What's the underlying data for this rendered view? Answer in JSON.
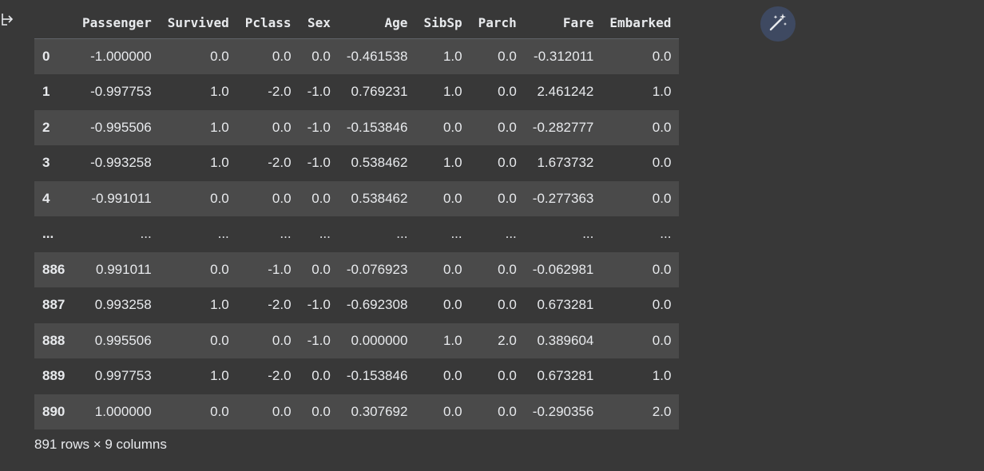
{
  "columns": [
    "Passenger",
    "Survived",
    "Pclass",
    "Sex",
    "Age",
    "SibSp",
    "Parch",
    "Fare",
    "Embarked"
  ],
  "rows": [
    {
      "index": "0",
      "cells": [
        "-1.000000",
        "0.0",
        "0.0",
        "0.0",
        "-0.461538",
        "1.0",
        "0.0",
        "-0.312011",
        "0.0"
      ]
    },
    {
      "index": "1",
      "cells": [
        "-0.997753",
        "1.0",
        "-2.0",
        "-1.0",
        "0.769231",
        "1.0",
        "0.0",
        "2.461242",
        "1.0"
      ]
    },
    {
      "index": "2",
      "cells": [
        "-0.995506",
        "1.0",
        "0.0",
        "-1.0",
        "-0.153846",
        "0.0",
        "0.0",
        "-0.282777",
        "0.0"
      ]
    },
    {
      "index": "3",
      "cells": [
        "-0.993258",
        "1.0",
        "-2.0",
        "-1.0",
        "0.538462",
        "1.0",
        "0.0",
        "1.673732",
        "0.0"
      ]
    },
    {
      "index": "4",
      "cells": [
        "-0.991011",
        "0.0",
        "0.0",
        "0.0",
        "0.538462",
        "0.0",
        "0.0",
        "-0.277363",
        "0.0"
      ]
    },
    {
      "index": "...",
      "cells": [
        "...",
        "...",
        "...",
        "...",
        "...",
        "...",
        "...",
        "...",
        "..."
      ]
    },
    {
      "index": "886",
      "cells": [
        "0.991011",
        "0.0",
        "-1.0",
        "0.0",
        "-0.076923",
        "0.0",
        "0.0",
        "-0.062981",
        "0.0"
      ]
    },
    {
      "index": "887",
      "cells": [
        "0.993258",
        "1.0",
        "-2.0",
        "-1.0",
        "-0.692308",
        "0.0",
        "0.0",
        "0.673281",
        "0.0"
      ]
    },
    {
      "index": "888",
      "cells": [
        "0.995506",
        "0.0",
        "0.0",
        "-1.0",
        "0.000000",
        "1.0",
        "2.0",
        "0.389604",
        "0.0"
      ]
    },
    {
      "index": "889",
      "cells": [
        "0.997753",
        "1.0",
        "-2.0",
        "0.0",
        "-0.153846",
        "0.0",
        "0.0",
        "0.673281",
        "1.0"
      ]
    },
    {
      "index": "890",
      "cells": [
        "1.000000",
        "0.0",
        "0.0",
        "0.0",
        "0.307692",
        "0.0",
        "0.0",
        "-0.290356",
        "2.0"
      ]
    }
  ],
  "footer": "891 rows × 9 columns",
  "icons": {
    "output": "output-arrow-icon",
    "magic": "magic-wand-icon"
  },
  "colors": {
    "background": "#383838",
    "row_alt": "#4a4a4a",
    "text": "#e8eaed",
    "magic_button_bg": "#3e4961"
  }
}
